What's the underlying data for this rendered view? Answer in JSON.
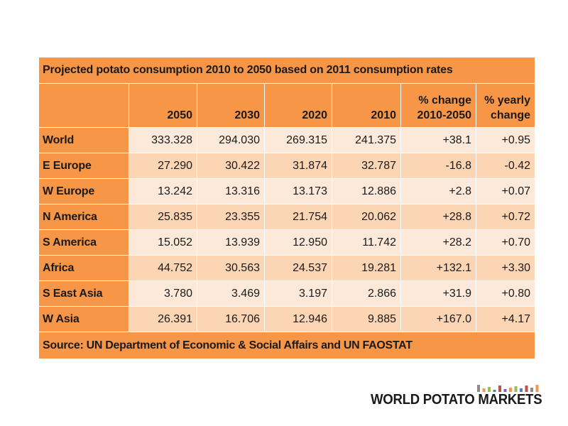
{
  "table": {
    "title": "Projected potato consumption 2010 to 2050 based on 2011 consumption rates",
    "headers": {
      "col_2050": "2050",
      "col_2030": "2030",
      "col_2020": "2020",
      "col_2010": "2010",
      "pct_change_line1": "% change",
      "pct_change_line2": "2010-2050",
      "yearly_change_line1": "% yearly",
      "yearly_change_line2": "change"
    },
    "rows": [
      {
        "region": "World",
        "v2050": "333.328",
        "v2030": "294.030",
        "v2020": "269.315",
        "v2010": "241.375",
        "pct_change": "+38.1",
        "yearly_change": "+0.95"
      },
      {
        "region": "E Europe",
        "v2050": "27.290",
        "v2030": "30.422",
        "v2020": "31.874",
        "v2010": "32.787",
        "pct_change": "-16.8",
        "yearly_change": "-0.42"
      },
      {
        "region": "W Europe",
        "v2050": "13.242",
        "v2030": "13.316",
        "v2020": "13.173",
        "v2010": "12.886",
        "pct_change": "+2.8",
        "yearly_change": "+0.07"
      },
      {
        "region": "N America",
        "v2050": "25.835",
        "v2030": "23.355",
        "v2020": "21.754",
        "v2010": "20.062",
        "pct_change": "+28.8",
        "yearly_change": "+0.72"
      },
      {
        "region": "S America",
        "v2050": "15.052",
        "v2030": "13.939",
        "v2020": "12.950",
        "v2010": "11.742",
        "pct_change": "+28.2",
        "yearly_change": "+0.70"
      },
      {
        "region": "Africa",
        "v2050": "44.752",
        "v2030": "30.563",
        "v2020": "24.537",
        "v2010": "19.281",
        "pct_change": "+132.1",
        "yearly_change": "+3.30"
      },
      {
        "region": "S East Asia",
        "v2050": "3.780",
        "v2030": "3.469",
        "v2020": "3.197",
        "v2010": "2.866",
        "pct_change": "+31.9",
        "yearly_change": "+0.80"
      },
      {
        "region": "W Asia",
        "v2050": "26.391",
        "v2030": "16.706",
        "v2020": "12.946",
        "v2010": "9.885",
        "pct_change": "+167.0",
        "yearly_change": "+4.17"
      }
    ],
    "source": "Source: UN Department of Economic & Social Affairs and UN FAOSTAT"
  },
  "logo": {
    "text": "WORLD POTATO MARKETS",
    "bar_colors": [
      "#8c8c8c",
      "#f79646",
      "#9bbb59",
      "#4f81bd",
      "#c0504d",
      "#8064a2",
      "#f79646",
      "#9bbb59",
      "#4f81bd",
      "#c0504d",
      "#8c8c8c",
      "#f79646"
    ]
  },
  "colors": {
    "header_orange": "#f79646",
    "row_light": "#fde9d9",
    "row_dark": "#fcd5b4"
  }
}
